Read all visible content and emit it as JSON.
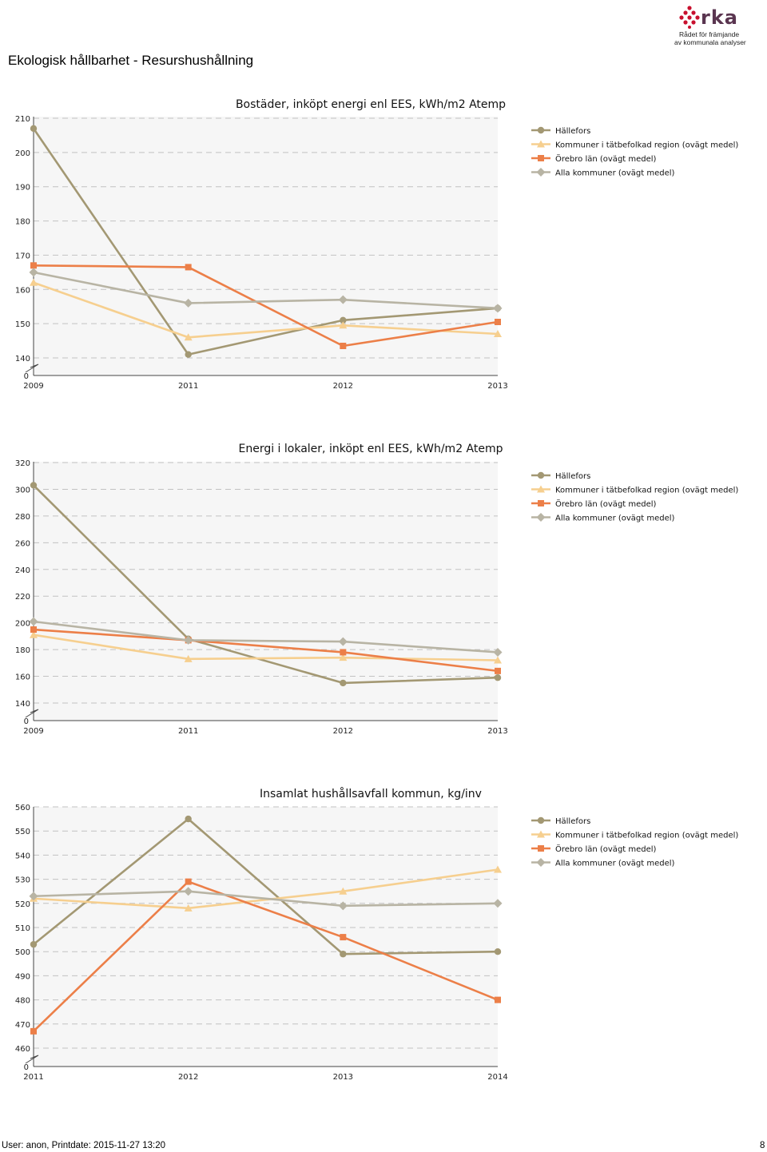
{
  "header": {
    "title": "Ekologisk hållbarhet - Resurshushållning",
    "logo_text": "rka",
    "logo_tagline_1": "Rådet för främjande",
    "logo_tagline_2": "av kommunala analyser"
  },
  "footer": {
    "user_info": "User: anon, Printdate: 2015-11-27 13:20",
    "page_number": "8"
  },
  "colors": {
    "hallefors": "#a39873",
    "tatbefolkad": "#f6cf8f",
    "orebro": "#ec7f48",
    "alla": "#b8b4a4"
  },
  "chart_data": [
    {
      "type": "line",
      "title": "Bostäder, inköpt energi enl EES, kWh/m2 Atemp",
      "categories": [
        "2009",
        "2011",
        "2012",
        "2013"
      ],
      "yticks": [
        "140",
        "150",
        "160",
        "170",
        "180",
        "190",
        "200",
        "210"
      ],
      "ylim": [
        140,
        210
      ],
      "axis_break_label": "0",
      "series": [
        {
          "name": "Hällefors",
          "marker": "circle",
          "values": [
            207,
            141,
            151,
            154.5
          ]
        },
        {
          "name": "Kommuner i tätbefolkad region (ovägt medel)",
          "marker": "triangle",
          "values": [
            162,
            146,
            149.5,
            147
          ]
        },
        {
          "name": "Örebro län (ovägt medel)",
          "marker": "square",
          "values": [
            167,
            166.5,
            143.5,
            150.5
          ]
        },
        {
          "name": "Alla kommuner (ovägt medel)",
          "marker": "diamond",
          "values": [
            165,
            156,
            157,
            154.5
          ]
        }
      ]
    },
    {
      "type": "line",
      "title": "Energi i lokaler, inköpt enl EES, kWh/m2 Atemp",
      "categories": [
        "2009",
        "2011",
        "2012",
        "2013"
      ],
      "yticks": [
        "140",
        "160",
        "180",
        "200",
        "220",
        "240",
        "260",
        "280",
        "300",
        "320"
      ],
      "ylim": [
        140,
        320
      ],
      "axis_break_label": "0",
      "series": [
        {
          "name": "Hällefors",
          "marker": "circle",
          "values": [
            303,
            188,
            155,
            159
          ]
        },
        {
          "name": "Kommuner i tätbefolkad region (ovägt medel)",
          "marker": "triangle",
          "values": [
            191,
            173,
            174,
            172
          ]
        },
        {
          "name": "Örebro län (ovägt medel)",
          "marker": "square",
          "values": [
            195,
            187,
            178,
            164
          ]
        },
        {
          "name": "Alla kommuner (ovägt medel)",
          "marker": "diamond",
          "values": [
            201,
            187,
            186,
            178
          ]
        }
      ]
    },
    {
      "type": "line",
      "title": "Insamlat hushållsavfall kommun, kg/inv",
      "categories": [
        "2011",
        "2012",
        "2013",
        "2014"
      ],
      "yticks": [
        "460",
        "470",
        "480",
        "490",
        "500",
        "510",
        "520",
        "530",
        "540",
        "550",
        "560"
      ],
      "ylim": [
        460,
        560
      ],
      "axis_break_label": "0",
      "series": [
        {
          "name": "Hällefors",
          "marker": "circle",
          "values": [
            503,
            555,
            499,
            500
          ]
        },
        {
          "name": "Kommuner i tätbefolkad region (ovägt medel)",
          "marker": "triangle",
          "values": [
            522,
            518,
            525,
            534
          ]
        },
        {
          "name": "Örebro län (ovägt medel)",
          "marker": "square",
          "values": [
            467,
            529,
            506,
            480
          ]
        },
        {
          "name": "Alla kommuner (ovägt medel)",
          "marker": "diamond",
          "values": [
            523,
            525,
            519,
            520
          ]
        }
      ]
    }
  ]
}
